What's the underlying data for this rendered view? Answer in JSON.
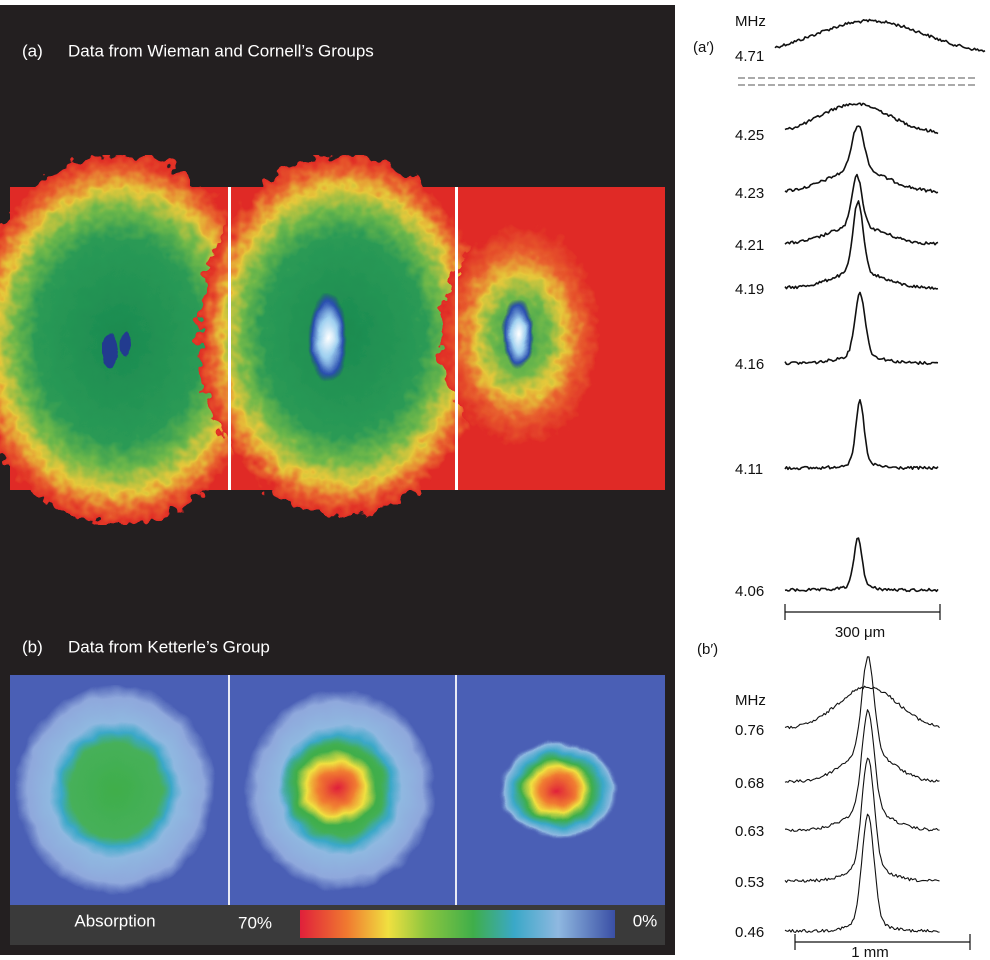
{
  "figure": {
    "panel_a": {
      "label": "(a)",
      "title": "Data from Wieman and Cornell’s Groups"
    },
    "panel_b": {
      "label": "(b)",
      "title": "Data from Ketterle’s Group"
    },
    "colorbar": {
      "label": "Absorption",
      "max": "70%",
      "min": "0%"
    },
    "panel_a_prime": {
      "label": "(a′)",
      "unit": "MHz",
      "frequencies": [
        "4.71",
        "4.25",
        "4.23",
        "4.21",
        "4.19",
        "4.16",
        "4.11",
        "4.06"
      ],
      "scale_bar": "300 μm"
    },
    "panel_b_prime": {
      "label": "(b′)",
      "unit": "MHz",
      "frequencies": [
        "0.76",
        "0.68",
        "0.63",
        "0.53",
        "0.46"
      ],
      "scale_bar": "1 mm"
    }
  }
}
